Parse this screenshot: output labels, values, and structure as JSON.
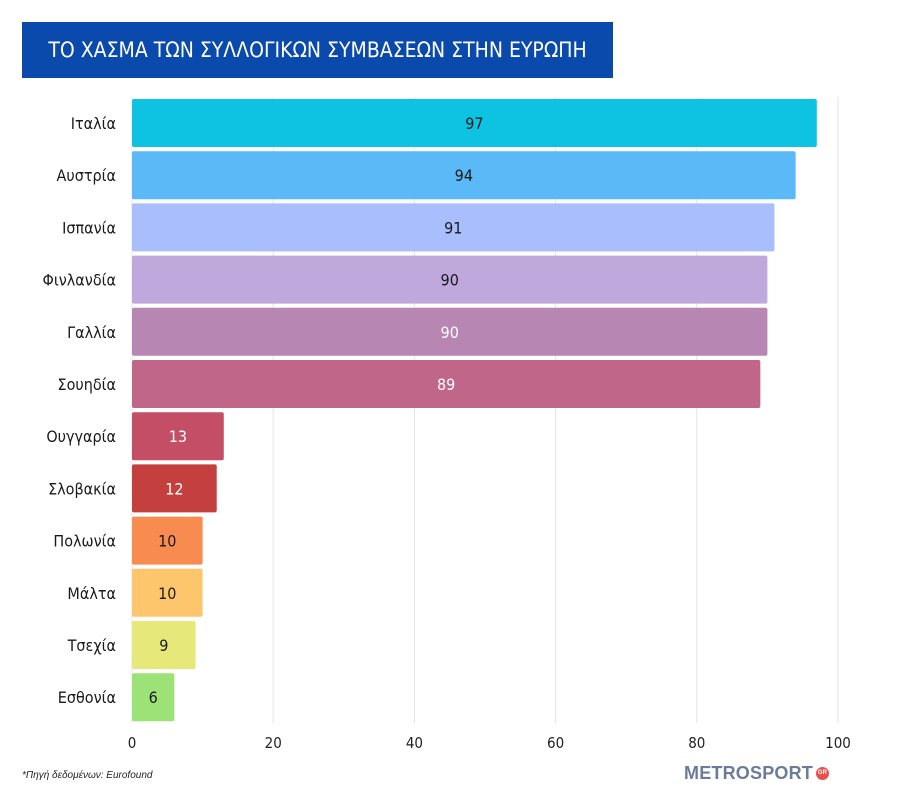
{
  "chart_data": {
    "type": "bar",
    "orientation": "horizontal",
    "title": "ΤΟ ΧΑΣΜΑ ΤΩΝ ΣΥΛΛΟΓΙΚΩΝ ΣΥΜΒΑΣΕΩΝ ΣΤΗΝ ΕΥΡΩΠΗ",
    "categories": [
      "Ιταλία",
      "Αυστρία",
      "Ισπανία",
      "Φινλανδία",
      "Γαλλία",
      "Σουηδία",
      "Ουγγαρία",
      "Σλοβακία",
      "Πολωνία",
      "Μάλτα",
      "Τσεχία",
      "Εσθονία"
    ],
    "values": [
      97,
      94,
      91,
      90,
      90,
      89,
      13,
      12,
      10,
      10,
      9,
      6
    ],
    "colors": [
      "#0ec2e2",
      "#5bb9f7",
      "#a9befd",
      "#bfa8dc",
      "#b886b3",
      "#bf6689",
      "#c34e66",
      "#c4403e",
      "#f88b50",
      "#fec66c",
      "#e6e979",
      "#9ce277"
    ],
    "label_colors": [
      "#1a1a1a",
      "#1a1a1a",
      "#1a1a1a",
      "#1a1a1a",
      "#ffffff",
      "#ffffff",
      "#ffffff",
      "#ffffff",
      "#1a1a1a",
      "#1a1a1a",
      "#1a1a1a",
      "#1a1a1a"
    ],
    "xlim": [
      0,
      100
    ],
    "xticks": [
      0,
      20,
      40,
      60,
      80,
      100
    ],
    "grid": true,
    "xlabel": "",
    "ylabel": ""
  },
  "footer": {
    "source": "*Πηγή δεδομένων: Eurofound",
    "brand": "METROSPORT",
    "brand_badge": "GR"
  }
}
